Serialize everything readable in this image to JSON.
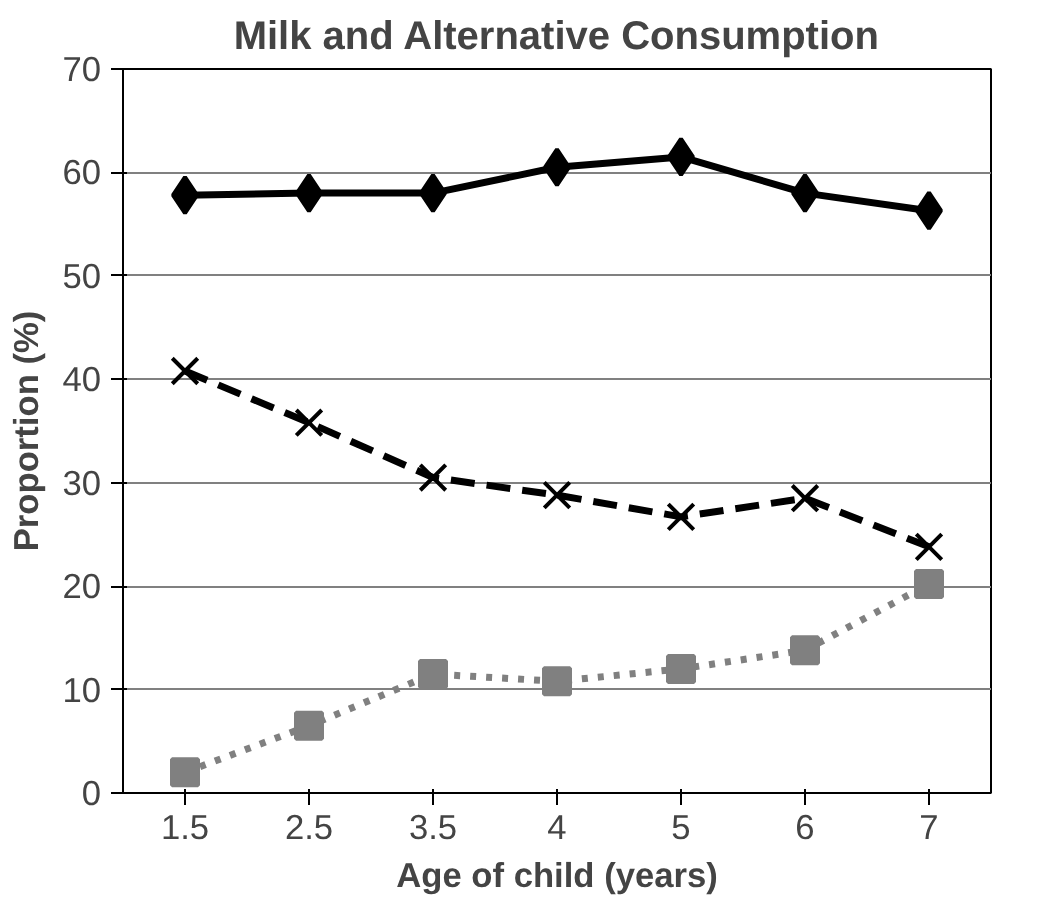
{
  "chart_data": {
    "type": "line",
    "title": "Milk and Alternative Consumption",
    "xlabel": "Age of child (years)",
    "ylabel": "Proportion (%)",
    "categories": [
      "1.5",
      "2.5",
      "3.5",
      "4",
      "5",
      "6",
      "7"
    ],
    "series": [
      {
        "color": "#000000",
        "marker": "diamond",
        "line_style": "solid",
        "values": [
          57.8,
          58,
          58,
          60.5,
          61.5,
          58,
          56.3
        ]
      },
      {
        "color": "#000000",
        "marker": "cross",
        "line_style": "dashed",
        "values": [
          40.8,
          35.8,
          30.5,
          28.8,
          26.7,
          28.5,
          23.8
        ]
      },
      {
        "color": "#808080",
        "marker": "square",
        "line_style": "dotted",
        "values": [
          2,
          6.5,
          11.5,
          10.8,
          12,
          13.8,
          20.2
        ]
      }
    ],
    "ylim": [
      0,
      70
    ],
    "yticks": [
      0,
      10,
      20,
      30,
      40,
      50,
      60,
      70
    ],
    "grid": "y"
  }
}
